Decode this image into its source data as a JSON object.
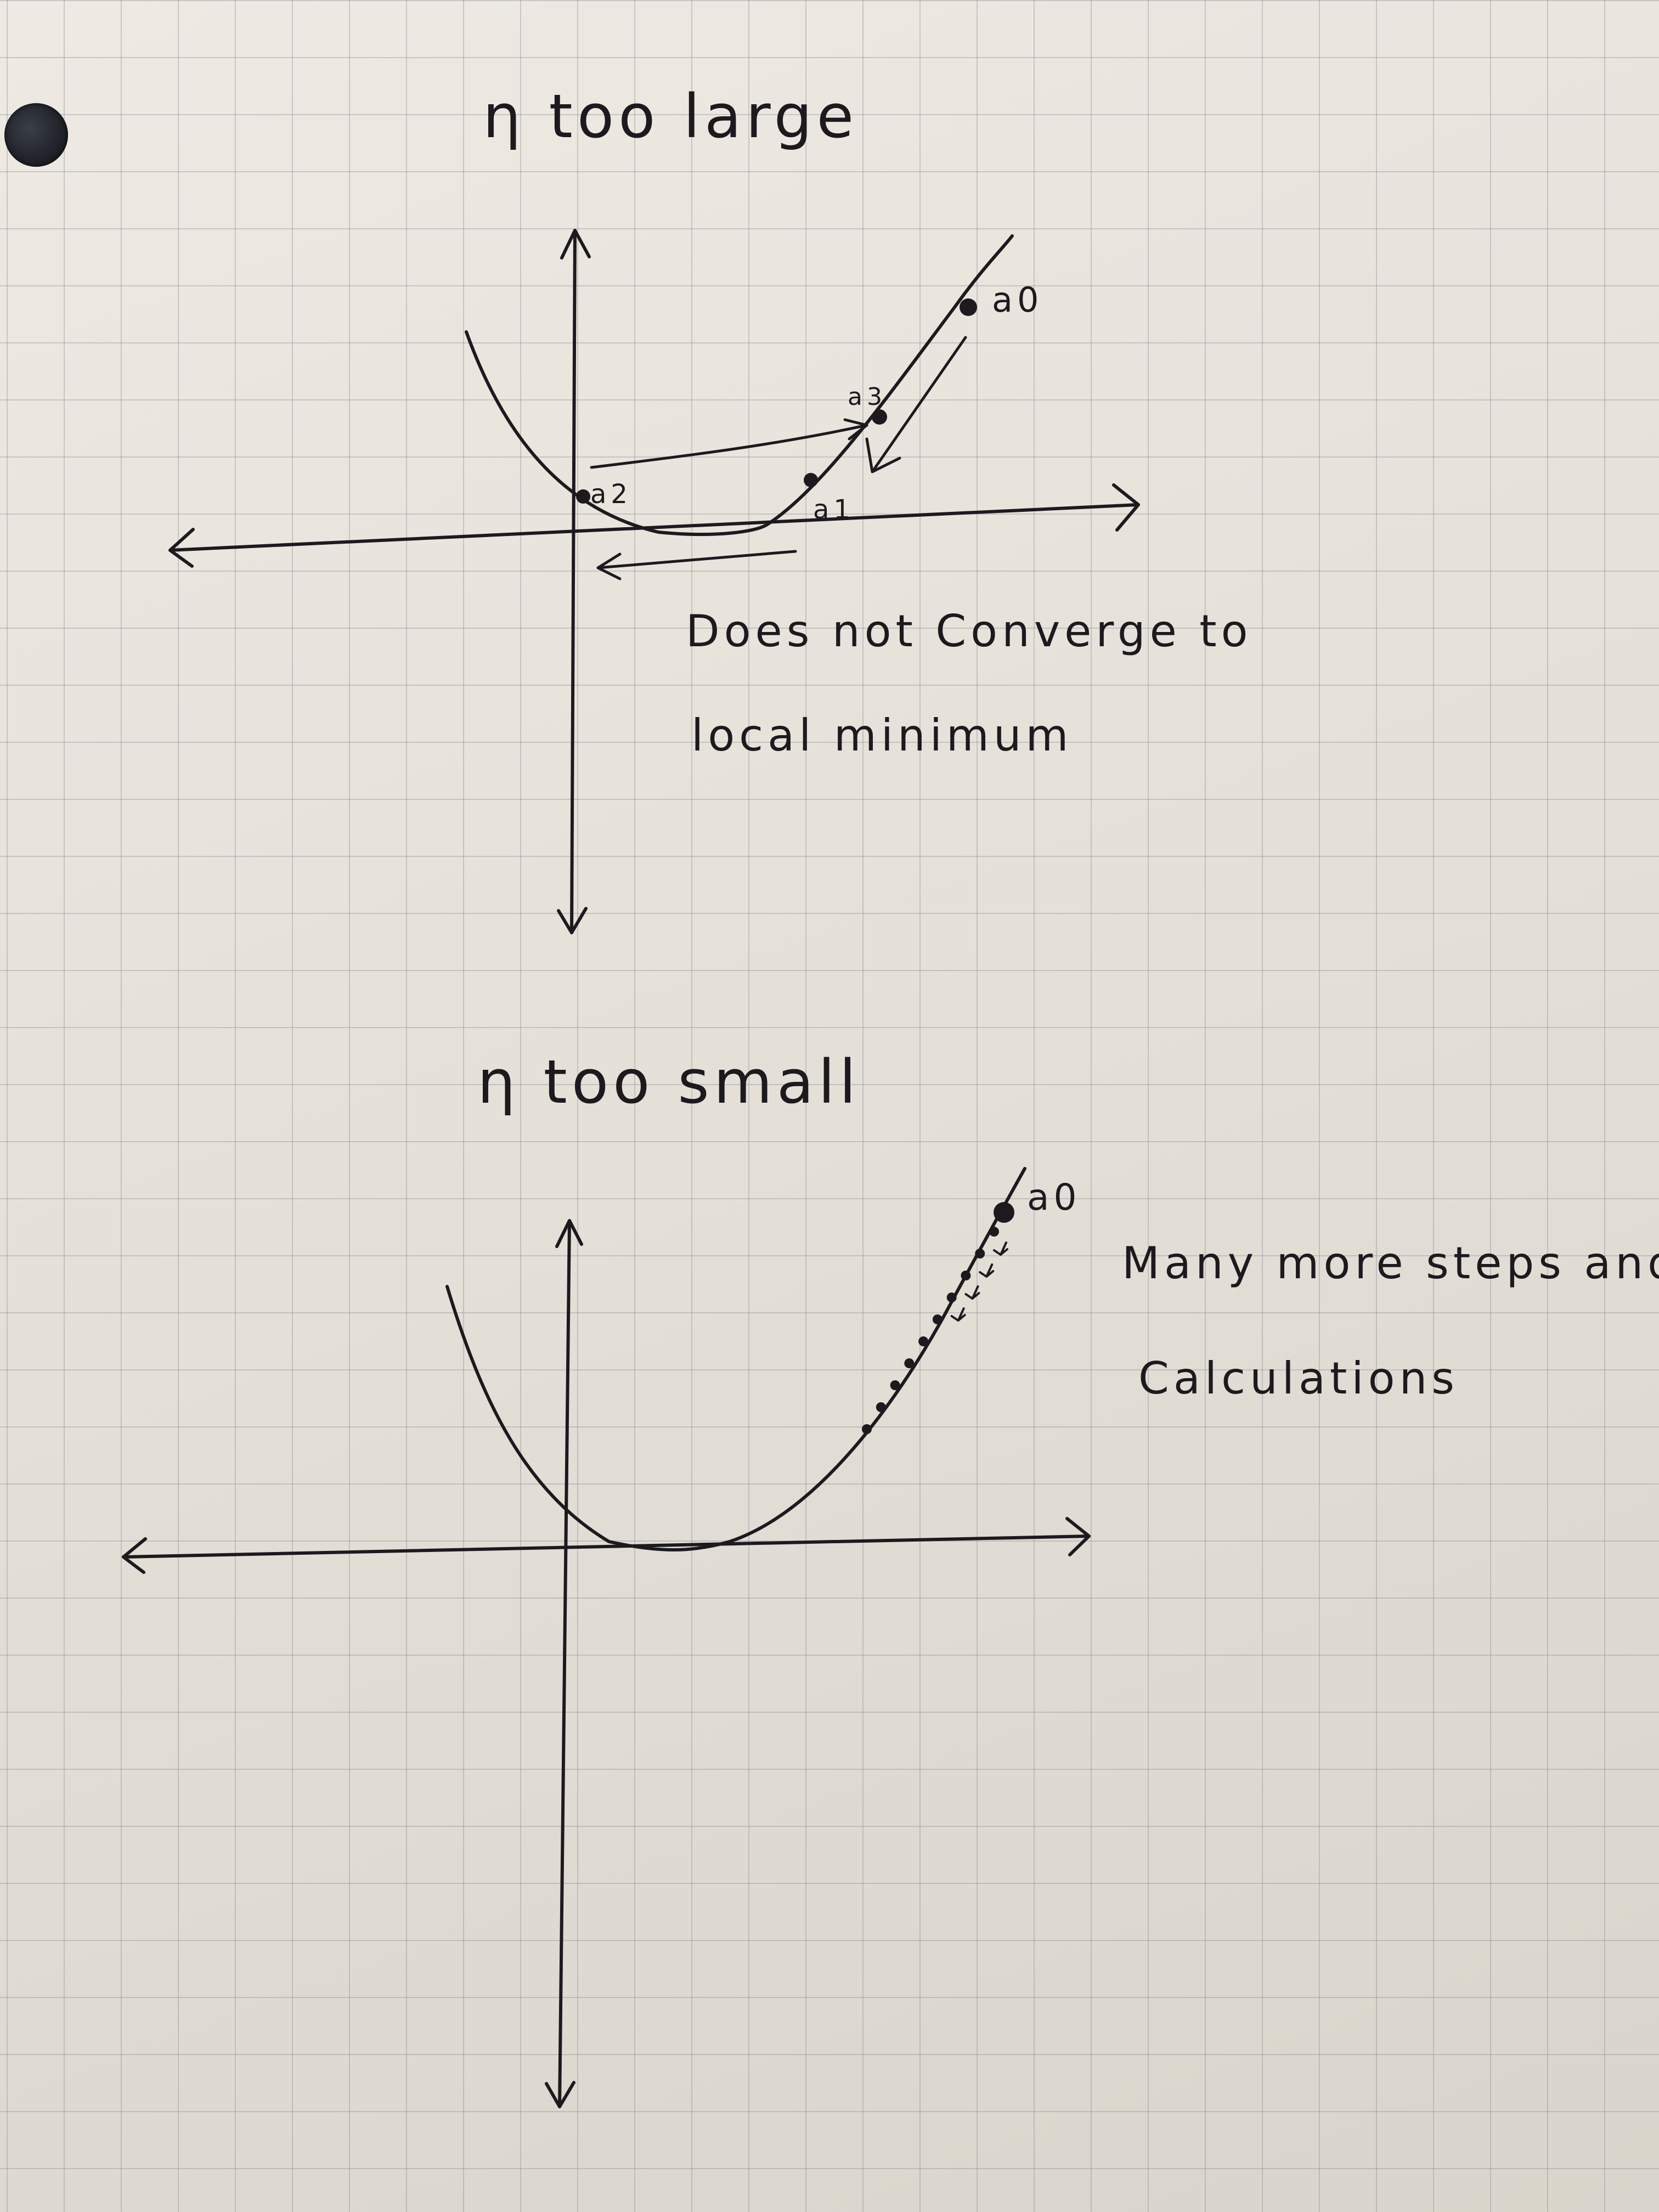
{
  "ink_color": "#1c1a1e",
  "paper_color": "#e8e4dd",
  "grid_color": "#8c8c96",
  "diagrams": [
    {
      "heading": "η too large",
      "point_labels": [
        "a0",
        "a1",
        "a2",
        "a3"
      ],
      "note_lines": [
        "Does not Converge to",
        "local minimum"
      ]
    },
    {
      "heading": "η too small",
      "point_labels": [
        "a0"
      ],
      "note_lines": [
        "Many more steps and",
        "Calculations"
      ],
      "small_step_count": 10
    }
  ]
}
